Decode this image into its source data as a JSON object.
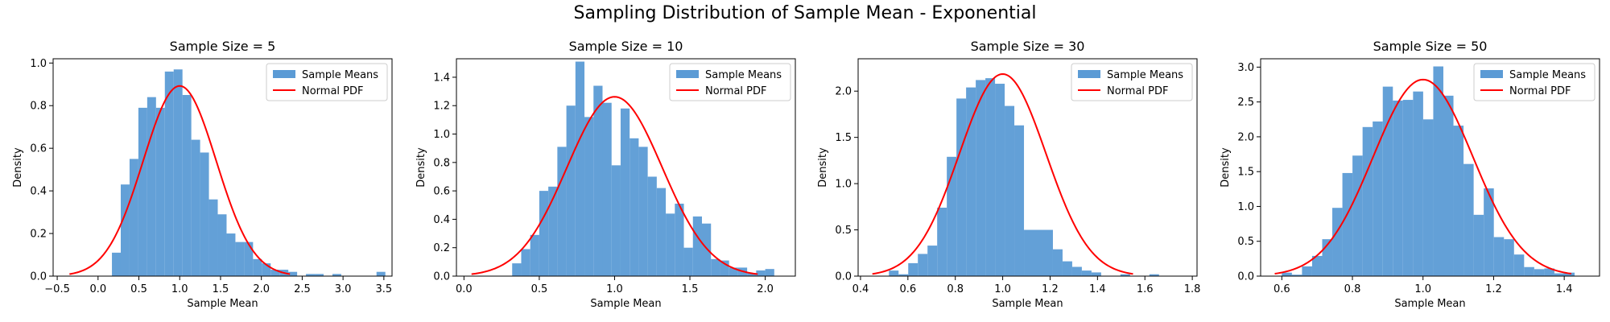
{
  "figure": {
    "title": "Sampling Distribution of Sample Mean - Exponential"
  },
  "chart_data": [
    {
      "type": "bar",
      "title": "Sample Size = 5",
      "xlabel": "Sample Mean",
      "ylabel": "Density",
      "xlim": [
        -0.55,
        3.6
      ],
      "ylim": [
        0,
        1.02
      ],
      "xticks": [
        -0.5,
        0.0,
        0.5,
        1.0,
        1.5,
        2.0,
        2.5,
        3.0,
        3.5
      ],
      "xtick_labels": [
        "−0.5",
        "0.0",
        "0.5",
        "1.0",
        "1.5",
        "2.0",
        "2.5",
        "3.0",
        "3.5"
      ],
      "yticks": [
        0.0,
        0.2,
        0.4,
        0.6,
        0.8,
        1.0
      ],
      "ytick_labels": [
        "0.0",
        "0.2",
        "0.4",
        "0.6",
        "0.8",
        "1.0"
      ],
      "legend": {
        "placement": "upper right",
        "entries": [
          "Sample Means",
          "Normal PDF"
        ]
      },
      "hist_color": "#5b9bd5",
      "pdf_color": "#ff0000",
      "series": [
        {
          "name": "Sample Means",
          "type": "histogram",
          "bin_start": 0.17,
          "bin_width": 0.108,
          "values": [
            0.11,
            0.43,
            0.55,
            0.79,
            0.84,
            0.79,
            0.96,
            0.97,
            0.85,
            0.64,
            0.58,
            0.36,
            0.29,
            0.2,
            0.16,
            0.16,
            0.08,
            0.06,
            0.03,
            0.03,
            0.02,
            0.0,
            0.01,
            0.01,
            0.0,
            0.01,
            0.0,
            0.0,
            0.0,
            0.0,
            0.02
          ]
        },
        {
          "name": "Normal PDF",
          "type": "line",
          "mean": 1.0,
          "sd": 0.447,
          "x_range": [
            -0.35,
            2.35
          ]
        }
      ]
    },
    {
      "type": "bar",
      "title": "Sample Size = 10",
      "xlabel": "Sample Mean",
      "ylabel": "Density",
      "xlim": [
        -0.05,
        2.2
      ],
      "ylim": [
        0,
        1.53
      ],
      "xticks": [
        0.0,
        0.5,
        1.0,
        1.5,
        2.0
      ],
      "xtick_labels": [
        "0.0",
        "0.5",
        "1.0",
        "1.5",
        "2.0"
      ],
      "yticks": [
        0.0,
        0.2,
        0.4,
        0.6,
        0.8,
        1.0,
        1.2,
        1.4
      ],
      "ytick_labels": [
        "0.0",
        "0.2",
        "0.4",
        "0.6",
        "0.8",
        "1.0",
        "1.2",
        "1.4"
      ],
      "legend": {
        "placement": "upper right",
        "entries": [
          "Sample Means",
          "Normal PDF"
        ]
      },
      "hist_color": "#5b9bd5",
      "pdf_color": "#ff0000",
      "series": [
        {
          "name": "Sample Means",
          "type": "histogram",
          "bin_start": 0.32,
          "bin_width": 0.06,
          "values": [
            0.09,
            0.19,
            0.29,
            0.6,
            0.63,
            0.91,
            1.2,
            1.51,
            1.12,
            1.34,
            1.22,
            0.78,
            1.18,
            0.97,
            0.91,
            0.7,
            0.62,
            0.44,
            0.51,
            0.2,
            0.42,
            0.37,
            0.12,
            0.11,
            0.06,
            0.06,
            0.02,
            0.04,
            0.05
          ]
        },
        {
          "name": "Normal PDF",
          "type": "line",
          "mean": 1.0,
          "sd": 0.316,
          "x_range": [
            0.05,
            1.95
          ]
        }
      ]
    },
    {
      "type": "bar",
      "title": "Sample Size = 30",
      "xlabel": "Sample Mean",
      "ylabel": "Density",
      "xlim": [
        0.39,
        1.82
      ],
      "ylim": [
        0,
        2.35
      ],
      "xticks": [
        0.4,
        0.6,
        0.8,
        1.0,
        1.2,
        1.4,
        1.6,
        1.8
      ],
      "xtick_labels": [
        "0.4",
        "0.6",
        "0.8",
        "1.0",
        "1.2",
        "1.4",
        "1.6",
        "1.8"
      ],
      "yticks": [
        0.0,
        0.5,
        1.0,
        1.5,
        2.0
      ],
      "ytick_labels": [
        "0.0",
        "0.5",
        "1.0",
        "1.5",
        "2.0"
      ],
      "legend": {
        "placement": "upper right",
        "entries": [
          "Sample Means",
          "Normal PDF"
        ]
      },
      "hist_color": "#5b9bd5",
      "pdf_color": "#ff0000",
      "series": [
        {
          "name": "Sample Means",
          "type": "histogram",
          "bin_start": 0.52,
          "bin_width": 0.0407,
          "values": [
            0.06,
            0.02,
            0.14,
            0.24,
            0.33,
            0.74,
            1.29,
            1.92,
            2.04,
            2.12,
            2.14,
            2.08,
            1.84,
            1.63,
            0.5,
            0.5,
            0.5,
            0.29,
            0.16,
            0.1,
            0.06,
            0.04,
            0.0,
            0.0,
            0.02,
            0.0,
            0.0,
            0.02
          ]
        },
        {
          "name": "Normal PDF",
          "type": "line",
          "mean": 1.0,
          "sd": 0.1826,
          "x_range": [
            0.45,
            1.55
          ]
        }
      ]
    },
    {
      "type": "bar",
      "title": "Sample Size = 50",
      "xlabel": "Sample Mean",
      "ylabel": "Density",
      "xlim": [
        0.54,
        1.5
      ],
      "ylim": [
        0,
        3.12
      ],
      "xticks": [
        0.6,
        0.8,
        1.0,
        1.2,
        1.4
      ],
      "xtick_labels": [
        "0.6",
        "0.8",
        "1.0",
        "1.2",
        "1.4"
      ],
      "yticks": [
        0.0,
        0.5,
        1.0,
        1.5,
        2.0,
        2.5,
        3.0
      ],
      "ytick_labels": [
        "0.0",
        "0.5",
        "1.0",
        "1.5",
        "2.0",
        "2.5",
        "3.0"
      ],
      "legend": {
        "placement": "upper right",
        "entries": [
          "Sample Means",
          "Normal PDF"
        ]
      },
      "hist_color": "#5b9bd5",
      "pdf_color": "#ff0000",
      "series": [
        {
          "name": "Sample Means",
          "type": "histogram",
          "bin_start": 0.6,
          "bin_width": 0.0286,
          "values": [
            0.05,
            0.02,
            0.14,
            0.29,
            0.53,
            0.98,
            1.48,
            1.73,
            2.14,
            2.22,
            2.72,
            2.52,
            2.53,
            2.65,
            2.25,
            3.01,
            2.59,
            2.16,
            1.61,
            0.88,
            1.26,
            0.56,
            0.53,
            0.31,
            0.13,
            0.1,
            0.11,
            0.04,
            0.05
          ]
        },
        {
          "name": "Normal PDF",
          "type": "line",
          "mean": 1.0,
          "sd": 0.1414,
          "x_range": [
            0.58,
            1.42
          ]
        }
      ]
    }
  ]
}
